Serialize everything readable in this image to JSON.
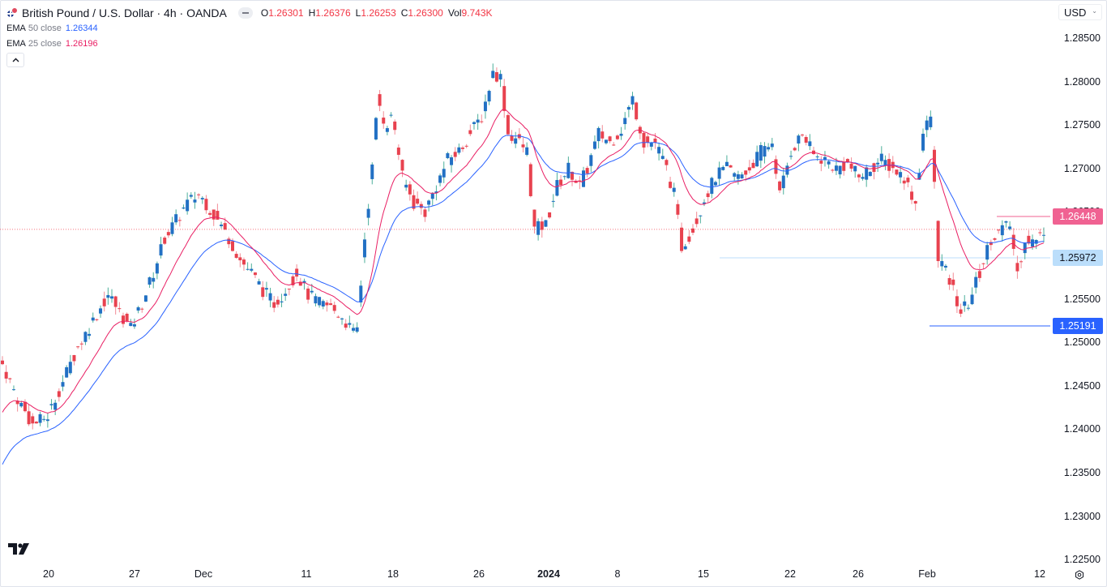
{
  "header": {
    "symbol_title": "British Pound / U.S. Dollar · 4h · OANDA",
    "ohlc": {
      "o_label": "O",
      "o_value": "1.26301",
      "h_label": "H",
      "h_value": "1.26376",
      "l_label": "L",
      "l_value": "1.26253",
      "c_label": "C",
      "c_value": "1.26300",
      "vol_label": "Vol",
      "vol_value": "9.743K"
    },
    "indicators": [
      {
        "name": "EMA",
        "params": "50 close",
        "value": "1.26344",
        "color": "#2962ff"
      },
      {
        "name": "EMA",
        "params": "25 close",
        "value": "1.26196",
        "color": "#e91e63"
      }
    ],
    "collapse_icon": "chevron-up-icon"
  },
  "currency_selector": {
    "value": "USD"
  },
  "price_axis": {
    "labels": [
      "1.28500",
      "1.28000",
      "1.27500",
      "1.27000",
      "1.26500",
      "1.26000",
      "1.25500",
      "1.25000",
      "1.24500",
      "1.24000",
      "1.23500",
      "1.23000",
      "1.22500"
    ]
  },
  "price_tags": {
    "resistance": {
      "value": "1.26448",
      "bg": "#f06292",
      "fg": "#ffffff"
    },
    "support_1": {
      "value": "1.25972",
      "bg": "#bbdefb",
      "fg": "#131722"
    },
    "support_2": {
      "value": "1.25191",
      "bg": "#2962ff",
      "fg": "#ffffff"
    }
  },
  "time_axis": {
    "labels": [
      {
        "text": "20",
        "x": 60,
        "bold": false
      },
      {
        "text": "27",
        "x": 166,
        "bold": false
      },
      {
        "text": "Dec",
        "x": 251,
        "bold": false
      },
      {
        "text": "11",
        "x": 378,
        "bold": false
      },
      {
        "text": "18",
        "x": 485,
        "bold": false
      },
      {
        "text": "26",
        "x": 591,
        "bold": false
      },
      {
        "text": "2024",
        "x": 677,
        "bold": true
      },
      {
        "text": "8",
        "x": 762,
        "bold": false
      },
      {
        "text": "15",
        "x": 868,
        "bold": false
      },
      {
        "text": "22",
        "x": 975,
        "bold": false
      },
      {
        "text": "26",
        "x": 1059,
        "bold": false
      },
      {
        "text": "Feb",
        "x": 1144,
        "bold": false
      },
      {
        "text": "12",
        "x": 1283,
        "bold": false
      }
    ]
  },
  "colors": {
    "up": "#2270c4",
    "down": "#e8424f",
    "ema50": "#2962ff",
    "ema25": "#e91e63",
    "last_price_line": "#f23645"
  },
  "chart_data": {
    "type": "candlestick",
    "title": "British Pound / U.S. Dollar · 4h · OANDA",
    "xlabel": "",
    "ylabel": "USD",
    "ylim": [
      1.225,
      1.2865
    ],
    "x_ticks": [
      "20",
      "27",
      "Dec",
      "11",
      "18",
      "26",
      "2024",
      "8",
      "15",
      "22",
      "26",
      "Feb",
      "12"
    ],
    "y_ticks": [
      1.285,
      1.28,
      1.275,
      1.27,
      1.265,
      1.26,
      1.255,
      1.25,
      1.245,
      1.24,
      1.235,
      1.23,
      1.225
    ],
    "series": [
      {
        "name": "GBPUSD close (approx)",
        "points": [
          [
            0,
            1.2475
          ],
          [
            8,
            1.2435
          ],
          [
            16,
            1.2405
          ],
          [
            24,
            1.2415
          ],
          [
            32,
            1.2455
          ],
          [
            40,
            1.2495
          ],
          [
            48,
            1.2525
          ],
          [
            56,
            1.2555
          ],
          [
            62,
            1.2535
          ],
          [
            68,
            1.2515
          ],
          [
            74,
            1.2545
          ],
          [
            80,
            1.258
          ],
          [
            86,
            1.262
          ],
          [
            92,
            1.264
          ],
          [
            98,
            1.266
          ],
          [
            104,
            1.267
          ],
          [
            108,
            1.266
          ],
          [
            114,
            1.264
          ],
          [
            120,
            1.262
          ],
          [
            126,
            1.2595
          ],
          [
            132,
            1.258
          ],
          [
            138,
            1.256
          ],
          [
            144,
            1.2545
          ],
          [
            150,
            1.256
          ],
          [
            156,
            1.258
          ],
          [
            162,
            1.2555
          ],
          [
            168,
            1.2545
          ],
          [
            174,
            1.254
          ],
          [
            180,
            1.253
          ],
          [
            186,
            1.251
          ],
          [
            188,
            1.2515
          ],
          [
            192,
            1.262
          ],
          [
            196,
            1.27
          ],
          [
            199,
            1.278
          ],
          [
            203,
            1.275
          ],
          [
            207,
            1.276
          ],
          [
            212,
            1.269
          ],
          [
            218,
            1.266
          ],
          [
            224,
            1.265
          ],
          [
            230,
            1.268
          ],
          [
            236,
            1.271
          ],
          [
            242,
            1.272
          ],
          [
            248,
            1.274
          ],
          [
            254,
            1.276
          ],
          [
            260,
            1.281
          ],
          [
            264,
            1.2805
          ],
          [
            268,
            1.274
          ],
          [
            272,
            1.2735
          ],
          [
            278,
            1.272
          ],
          [
            282,
            1.263
          ],
          [
            288,
            1.2635
          ],
          [
            294,
            1.268
          ],
          [
            300,
            1.27
          ],
          [
            306,
            1.268
          ],
          [
            310,
            1.27
          ],
          [
            316,
            1.274
          ],
          [
            322,
            1.273
          ],
          [
            328,
            1.2745
          ],
          [
            334,
            1.278
          ],
          [
            340,
            1.273
          ],
          [
            346,
            1.273
          ],
          [
            352,
            1.27
          ],
          [
            356,
            1.267
          ],
          [
            360,
            1.261
          ],
          [
            366,
            1.263
          ],
          [
            372,
            1.2665
          ],
          [
            378,
            1.269
          ],
          [
            384,
            1.27
          ],
          [
            390,
            1.269
          ],
          [
            396,
            1.27
          ],
          [
            402,
            1.272
          ],
          [
            408,
            1.273
          ],
          [
            412,
            1.267
          ],
          [
            418,
            1.272
          ],
          [
            424,
            1.274
          ],
          [
            430,
            1.2715
          ],
          [
            436,
            1.271
          ],
          [
            442,
            1.27
          ],
          [
            448,
            1.2705
          ],
          [
            454,
            1.269
          ],
          [
            460,
            1.27
          ],
          [
            466,
            1.271
          ],
          [
            472,
            1.27
          ],
          [
            478,
            1.269
          ],
          [
            484,
            1.266
          ],
          [
            488,
            1.274
          ],
          [
            492,
            1.276
          ],
          [
            496,
            1.26
          ],
          [
            500,
            1.258
          ],
          [
            504,
            1.256
          ],
          [
            508,
            1.2535
          ],
          [
            512,
            1.2545
          ],
          [
            518,
            1.258
          ],
          [
            524,
            1.262
          ],
          [
            530,
            1.263
          ],
          [
            534,
            1.2635
          ],
          [
            538,
            1.258
          ],
          [
            542,
            1.262
          ],
          [
            548,
            1.2615
          ],
          [
            552,
            1.263
          ]
        ]
      },
      {
        "name": "EMA 50 close",
        "last": 1.26344
      },
      {
        "name": "EMA 25 close",
        "last": 1.26196
      }
    ],
    "annotations": [
      {
        "type": "hline",
        "price": 1.26448,
        "label": "1.26448",
        "color": "#f06292"
      },
      {
        "type": "hline",
        "price": 1.25972,
        "label": "1.25972",
        "color": "#bbdefb"
      },
      {
        "type": "hline",
        "price": 1.25191,
        "label": "1.25191",
        "color": "#2962ff"
      },
      {
        "type": "last_price_dotted",
        "price": 1.263
      }
    ],
    "legend": [
      "EMA 50 close 1.26344",
      "EMA 25 close 1.26196"
    ]
  }
}
